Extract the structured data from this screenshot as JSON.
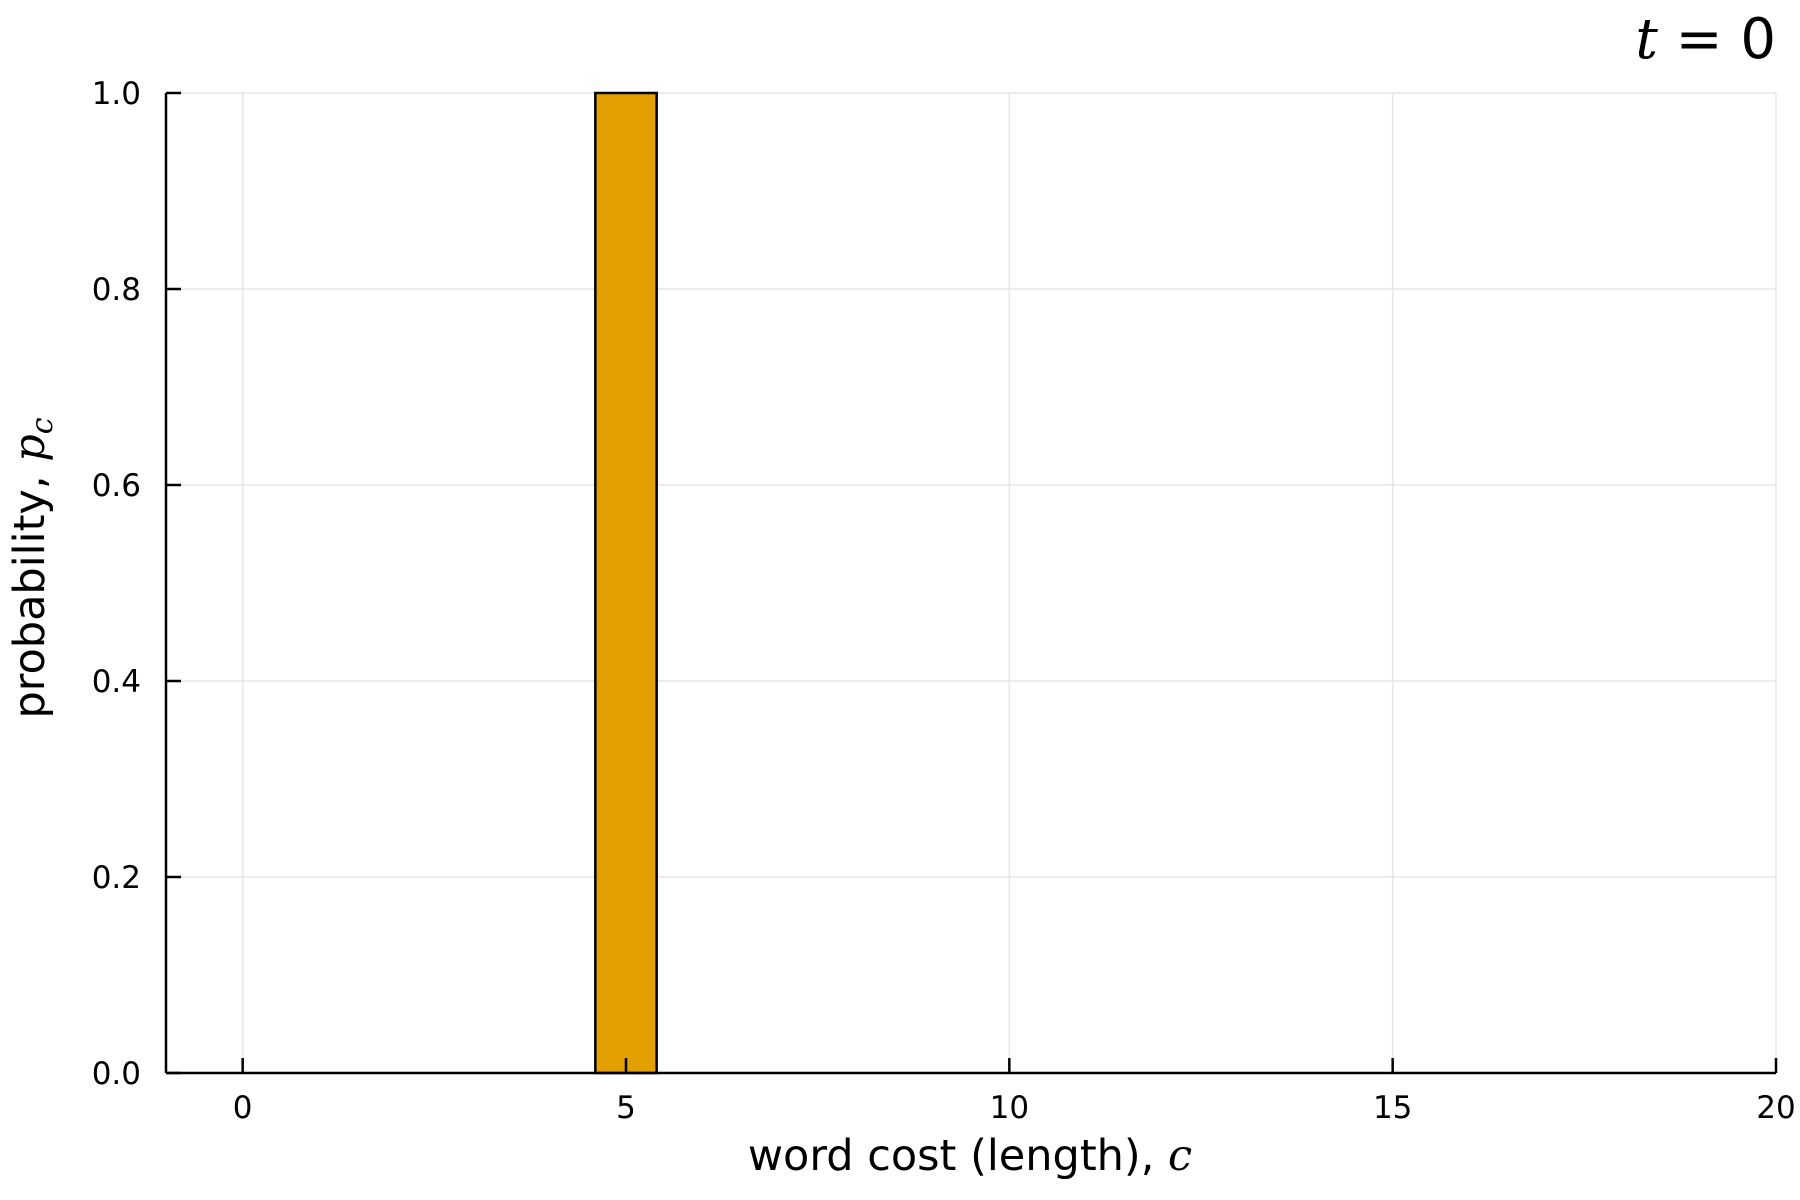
{
  "chart_data": {
    "type": "bar",
    "title": {
      "var": "t",
      "rest": " = 0"
    },
    "xlabel": {
      "text": "word cost (length), ",
      "var": "c"
    },
    "ylabel": {
      "text": "probability, ",
      "var": "p",
      "sub": "c"
    },
    "xlim": [
      -1,
      20
    ],
    "ylim": [
      0,
      1
    ],
    "xticks": [
      0,
      5,
      10,
      15,
      20
    ],
    "yticks": [
      0.0,
      0.2,
      0.4,
      0.6,
      0.8,
      1.0
    ],
    "ytick_labels": [
      "0.0",
      "0.2",
      "0.4",
      "0.6",
      "0.8",
      "1.0"
    ],
    "grid": true,
    "bar_width": 0.8,
    "bars": [
      {
        "x": 5,
        "y": 1.0
      }
    ],
    "colors": {
      "bar_fill": "#e4a000",
      "bar_edge": "#000000",
      "grid": "#e6e6e6",
      "axis": "#000000"
    }
  }
}
